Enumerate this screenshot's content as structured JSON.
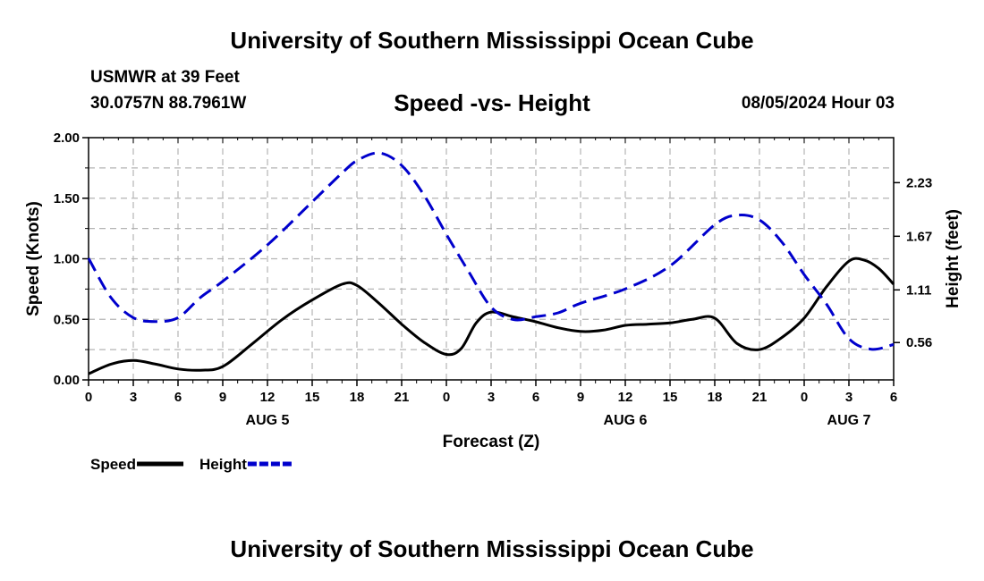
{
  "header": {
    "title": "University of Southern Mississippi Ocean Cube",
    "station": "USMWR at 39 Feet",
    "coords": "30.0757N  88.7961W",
    "subtitle": "Speed -vs- Height",
    "timestamp": "08/05/2024 Hour 03"
  },
  "footer": {
    "title": "University of Southern Mississippi Ocean Cube"
  },
  "chart_data": {
    "type": "line",
    "xlabel": "Forecast (Z)",
    "ylabel_left": "Speed (Knots)",
    "ylabel_right": "Height (feet)",
    "x_range_hours": [
      0,
      54
    ],
    "left_ylim": [
      0,
      2.0
    ],
    "right_ylim": [
      0.17,
      2.7
    ],
    "x_ticks": [
      0,
      3,
      6,
      9,
      12,
      15,
      18,
      21,
      24,
      27,
      30,
      33,
      36,
      39,
      42,
      45,
      48,
      51,
      54
    ],
    "x_tick_labels": [
      "0",
      "3",
      "6",
      "9",
      "12",
      "15",
      "18",
      "21",
      "0",
      "3",
      "6",
      "9",
      "12",
      "15",
      "18",
      "21",
      "0",
      "3",
      "6"
    ],
    "day_labels": [
      {
        "hour": 12,
        "label": "AUG 5"
      },
      {
        "hour": 36,
        "label": "AUG 6"
      },
      {
        "hour": 51,
        "label": "AUG 7"
      }
    ],
    "left_ticks": [
      0,
      0.5,
      1.0,
      1.5,
      2.0
    ],
    "left_tick_labels": [
      "0.00",
      "0.50",
      "1.00",
      "1.50",
      "2.00"
    ],
    "right_ticks": [
      0.56,
      1.11,
      1.67,
      2.23
    ],
    "right_tick_labels": [
      "0.56",
      "1.11",
      "1.67",
      "2.23"
    ],
    "grid": true,
    "legend_position": "bottom-left",
    "series": [
      {
        "name": "Speed",
        "axis": "left",
        "color": "#000000",
        "dash": "solid",
        "x": [
          0,
          1.5,
          3,
          4.5,
          6,
          7.5,
          9,
          11,
          13,
          15,
          17,
          18,
          19.5,
          21,
          22.5,
          24,
          25,
          26,
          27,
          28.5,
          30,
          31.5,
          33,
          34.5,
          36,
          37.5,
          39,
          40.5,
          42,
          43.5,
          45,
          46.5,
          48,
          49.5,
          51,
          52,
          53,
          54
        ],
        "values": [
          0.05,
          0.13,
          0.16,
          0.13,
          0.09,
          0.08,
          0.11,
          0.3,
          0.5,
          0.66,
          0.79,
          0.78,
          0.63,
          0.46,
          0.31,
          0.21,
          0.26,
          0.47,
          0.56,
          0.52,
          0.48,
          0.43,
          0.4,
          0.41,
          0.45,
          0.46,
          0.47,
          0.5,
          0.51,
          0.3,
          0.25,
          0.35,
          0.51,
          0.77,
          0.98,
          0.99,
          0.92,
          0.79
        ]
      },
      {
        "name": "Height",
        "axis": "right",
        "color": "#0000cc",
        "dash": "dashed",
        "x": [
          0,
          1.5,
          3,
          4.5,
          6,
          7.5,
          9,
          12,
          15,
          17,
          18,
          19.5,
          21,
          22.5,
          24,
          25.5,
          27,
          28.5,
          30,
          31.5,
          33,
          36,
          39,
          42,
          43.5,
          45,
          46.5,
          48,
          49.5,
          51,
          52.5,
          54
        ],
        "values": [
          1.44,
          1.03,
          0.82,
          0.78,
          0.82,
          1.03,
          1.2,
          1.58,
          2.03,
          2.33,
          2.46,
          2.54,
          2.41,
          2.1,
          1.69,
          1.3,
          0.93,
          0.8,
          0.83,
          0.87,
          0.97,
          1.12,
          1.36,
          1.79,
          1.89,
          1.84,
          1.61,
          1.27,
          0.96,
          0.6,
          0.49,
          0.54
        ]
      }
    ]
  }
}
